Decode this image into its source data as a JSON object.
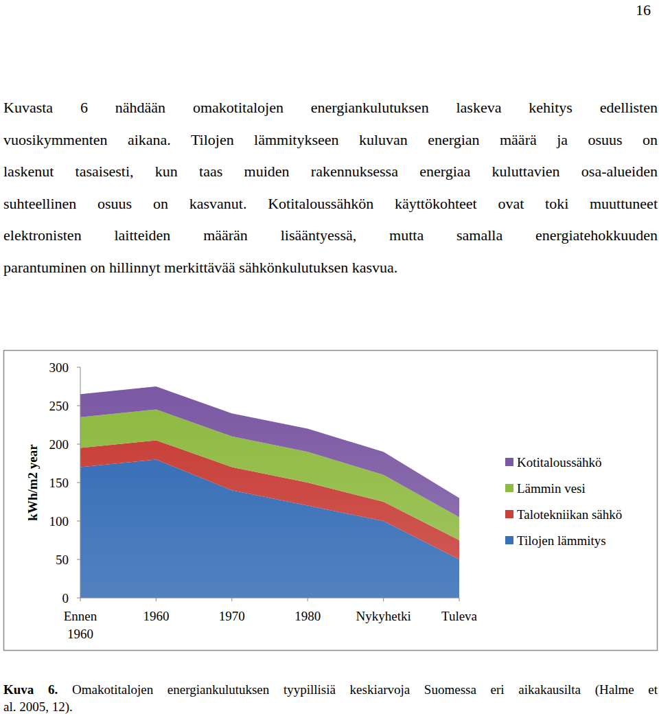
{
  "page_number": "16",
  "paragraph": {
    "lines": [
      "Kuvasta 6 nähdään omakotitalojen energiankulutuksen laskeva kehitys edellisten",
      "vuosikymmenten aikana. Tilojen lämmitykseen kuluvan energian määrä ja osuus on",
      "laskenut tasaisesti, kun taas muiden rakennuksessa energiaa kuluttavien osa-alueiden",
      "suhteellinen osuus on kasvanut. Kotitaloussähkön käyttökohteet ovat toki muuttuneet",
      "elektronisten laitteiden määrän lisääntyessä, mutta samalla energiatehokkuuden",
      "parantuminen on hillinnyt merkittävää sähkönkulutuksen kasvua."
    ]
  },
  "chart_data": {
    "type": "area",
    "stacked": true,
    "y_label": "kWh/m2 year",
    "categories": [
      "Ennen\n1960",
      "1960",
      "1970",
      "1980",
      "Nykyhetki",
      "Tuleva"
    ],
    "series": [
      {
        "name": "Tilojen lämmitys",
        "color": "#3a70b8",
        "values": [
          170,
          180,
          140,
          120,
          100,
          50
        ]
      },
      {
        "name": "Talotekniikan sähkö",
        "color": "#c8413a",
        "values": [
          25,
          25,
          30,
          30,
          25,
          25
        ]
      },
      {
        "name": "Lämmin vesi",
        "color": "#8fba43",
        "values": [
          40,
          40,
          40,
          40,
          35,
          30
        ]
      },
      {
        "name": "Kotitaloussähkö",
        "color": "#7b58a3",
        "values": [
          30,
          30,
          30,
          30,
          30,
          25
        ]
      }
    ],
    "ylim": [
      0,
      300
    ],
    "yticks": [
      0,
      50,
      100,
      150,
      200,
      250,
      300
    ],
    "grid": false,
    "legend": "right"
  },
  "caption": {
    "label": "Kuva 6.",
    "lines": [
      "Omakotitalojen energiankulutuksen tyypillisiä keskiarvoja Suomessa eri aikakausilta (Halme et",
      "al. 2005, 12)."
    ]
  }
}
